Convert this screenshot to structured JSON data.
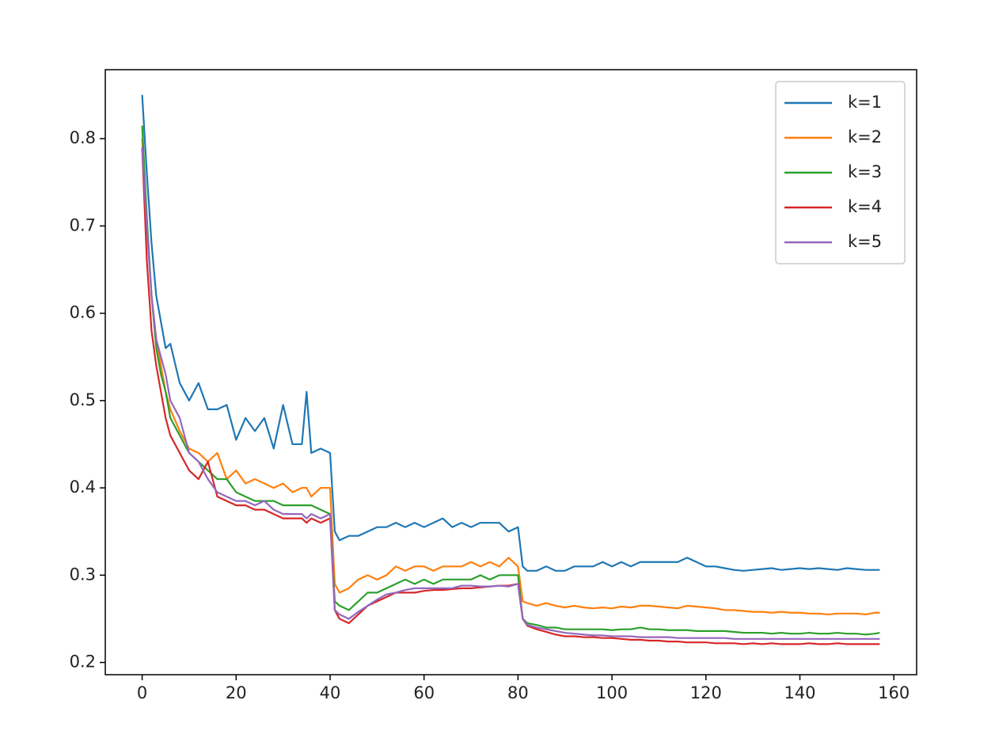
{
  "chart_data": {
    "type": "line",
    "x": [
      0,
      1,
      2,
      3,
      4,
      5,
      6,
      8,
      10,
      12,
      14,
      16,
      18,
      20,
      22,
      24,
      26,
      28,
      30,
      32,
      34,
      35,
      36,
      38,
      40,
      41,
      42,
      44,
      46,
      48,
      50,
      52,
      54,
      56,
      58,
      60,
      62,
      64,
      66,
      68,
      70,
      72,
      74,
      76,
      78,
      80,
      81,
      82,
      84,
      86,
      88,
      90,
      92,
      94,
      96,
      98,
      100,
      102,
      104,
      106,
      108,
      110,
      112,
      114,
      116,
      118,
      120,
      122,
      124,
      126,
      128,
      130,
      132,
      134,
      136,
      138,
      140,
      142,
      144,
      146,
      148,
      150,
      152,
      154,
      156,
      157
    ],
    "series": [
      {
        "name": "k=1",
        "color": "#1f77b4",
        "values": [
          0.85,
          0.76,
          0.68,
          0.62,
          0.59,
          0.56,
          0.565,
          0.52,
          0.5,
          0.52,
          0.49,
          0.49,
          0.495,
          0.455,
          0.48,
          0.465,
          0.48,
          0.445,
          0.495,
          0.45,
          0.45,
          0.51,
          0.44,
          0.445,
          0.44,
          0.35,
          0.34,
          0.345,
          0.345,
          0.35,
          0.355,
          0.355,
          0.36,
          0.355,
          0.36,
          0.355,
          0.36,
          0.365,
          0.355,
          0.36,
          0.355,
          0.36,
          0.36,
          0.36,
          0.35,
          0.355,
          0.31,
          0.305,
          0.305,
          0.31,
          0.305,
          0.305,
          0.31,
          0.31,
          0.31,
          0.315,
          0.31,
          0.315,
          0.31,
          0.315,
          0.315,
          0.315,
          0.315,
          0.315,
          0.32,
          0.315,
          0.31,
          0.31,
          0.308,
          0.306,
          0.305,
          0.306,
          0.307,
          0.308,
          0.306,
          0.307,
          0.308,
          0.307,
          0.308,
          0.307,
          0.306,
          0.308,
          0.307,
          0.306,
          0.306,
          0.306
        ]
      },
      {
        "name": "k=2",
        "color": "#ff7f0e",
        "values": [
          0.8,
          0.7,
          0.62,
          0.57,
          0.54,
          0.51,
          0.49,
          0.465,
          0.445,
          0.44,
          0.43,
          0.44,
          0.41,
          0.42,
          0.405,
          0.41,
          0.405,
          0.4,
          0.405,
          0.395,
          0.4,
          0.4,
          0.39,
          0.4,
          0.4,
          0.29,
          0.28,
          0.285,
          0.295,
          0.3,
          0.295,
          0.3,
          0.31,
          0.305,
          0.31,
          0.31,
          0.305,
          0.31,
          0.31,
          0.31,
          0.315,
          0.31,
          0.315,
          0.31,
          0.32,
          0.31,
          0.27,
          0.268,
          0.265,
          0.268,
          0.265,
          0.263,
          0.265,
          0.263,
          0.262,
          0.263,
          0.262,
          0.264,
          0.263,
          0.265,
          0.265,
          0.264,
          0.263,
          0.262,
          0.265,
          0.264,
          0.263,
          0.262,
          0.26,
          0.26,
          0.259,
          0.258,
          0.258,
          0.257,
          0.258,
          0.257,
          0.257,
          0.256,
          0.256,
          0.255,
          0.256,
          0.256,
          0.256,
          0.255,
          0.257,
          0.257
        ]
      },
      {
        "name": "k=3",
        "color": "#2ca02c",
        "values": [
          0.815,
          0.71,
          0.62,
          0.56,
          0.53,
          0.51,
          0.48,
          0.46,
          0.44,
          0.43,
          0.42,
          0.41,
          0.41,
          0.395,
          0.39,
          0.385,
          0.385,
          0.385,
          0.38,
          0.38,
          0.38,
          0.38,
          0.38,
          0.375,
          0.37,
          0.27,
          0.265,
          0.26,
          0.27,
          0.28,
          0.28,
          0.285,
          0.29,
          0.295,
          0.29,
          0.295,
          0.29,
          0.295,
          0.295,
          0.295,
          0.295,
          0.3,
          0.295,
          0.3,
          0.3,
          0.3,
          0.25,
          0.245,
          0.243,
          0.24,
          0.24,
          0.238,
          0.238,
          0.238,
          0.238,
          0.238,
          0.237,
          0.238,
          0.238,
          0.24,
          0.238,
          0.238,
          0.237,
          0.237,
          0.237,
          0.236,
          0.236,
          0.236,
          0.236,
          0.235,
          0.234,
          0.234,
          0.234,
          0.233,
          0.234,
          0.233,
          0.233,
          0.234,
          0.233,
          0.233,
          0.234,
          0.233,
          0.233,
          0.232,
          0.233,
          0.234
        ]
      },
      {
        "name": "k=4",
        "color": "#d62728",
        "values": [
          0.79,
          0.66,
          0.58,
          0.54,
          0.51,
          0.48,
          0.46,
          0.44,
          0.42,
          0.41,
          0.43,
          0.39,
          0.385,
          0.38,
          0.38,
          0.375,
          0.375,
          0.37,
          0.365,
          0.365,
          0.365,
          0.36,
          0.365,
          0.36,
          0.365,
          0.26,
          0.25,
          0.245,
          0.255,
          0.265,
          0.27,
          0.275,
          0.28,
          0.28,
          0.28,
          0.282,
          0.283,
          0.283,
          0.284,
          0.285,
          0.285,
          0.286,
          0.287,
          0.288,
          0.288,
          0.29,
          0.25,
          0.242,
          0.238,
          0.235,
          0.232,
          0.23,
          0.23,
          0.229,
          0.229,
          0.228,
          0.228,
          0.227,
          0.226,
          0.226,
          0.225,
          0.225,
          0.224,
          0.224,
          0.223,
          0.223,
          0.223,
          0.222,
          0.222,
          0.222,
          0.221,
          0.222,
          0.221,
          0.222,
          0.221,
          0.221,
          0.221,
          0.222,
          0.221,
          0.221,
          0.222,
          0.221,
          0.221,
          0.221,
          0.221,
          0.221
        ]
      },
      {
        "name": "k=5",
        "color": "#9467bd",
        "values": [
          0.79,
          0.7,
          0.62,
          0.57,
          0.55,
          0.53,
          0.5,
          0.48,
          0.44,
          0.43,
          0.41,
          0.395,
          0.39,
          0.385,
          0.385,
          0.38,
          0.385,
          0.375,
          0.37,
          0.37,
          0.37,
          0.365,
          0.37,
          0.365,
          0.37,
          0.26,
          0.255,
          0.25,
          0.258,
          0.265,
          0.272,
          0.278,
          0.28,
          0.283,
          0.285,
          0.285,
          0.285,
          0.285,
          0.285,
          0.288,
          0.288,
          0.287,
          0.287,
          0.288,
          0.287,
          0.29,
          0.25,
          0.243,
          0.24,
          0.238,
          0.236,
          0.234,
          0.233,
          0.232,
          0.231,
          0.231,
          0.23,
          0.23,
          0.23,
          0.229,
          0.229,
          0.229,
          0.229,
          0.228,
          0.228,
          0.228,
          0.228,
          0.228,
          0.228,
          0.227,
          0.227,
          0.227,
          0.227,
          0.227,
          0.227,
          0.227,
          0.227,
          0.227,
          0.227,
          0.227,
          0.227,
          0.227,
          0.227,
          0.227,
          0.227,
          0.227
        ]
      }
    ],
    "xlim": [
      -7.85,
      164.85
    ],
    "xticks": [
      0,
      20,
      40,
      60,
      80,
      100,
      120,
      140,
      160
    ],
    "ylim": [
      0.186,
      0.879
    ],
    "yticks": [
      0.2,
      0.3,
      0.4,
      0.5,
      0.6,
      0.7,
      0.8
    ],
    "legend": "upper right"
  }
}
